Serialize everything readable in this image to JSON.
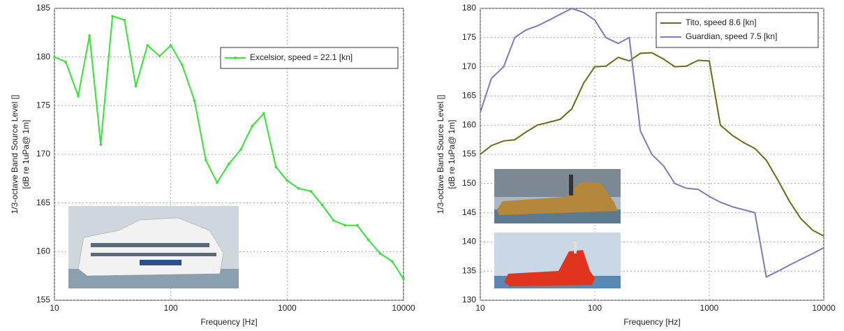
{
  "chart_data": [
    {
      "type": "line",
      "xscale": "log",
      "grid": true,
      "legend": "upper right",
      "markers": true,
      "ylabel": [
        "1/3-octave Band Source Level []",
        "[dB re 1uPa@ 1m]"
      ],
      "xlabel": "Frequency [Hz]",
      "xlim": [
        10,
        10000
      ],
      "ylim": [
        155,
        185
      ],
      "xticks": [
        10,
        100,
        1000,
        10000
      ],
      "yticks": [
        155,
        160,
        165,
        170,
        175,
        180,
        185
      ],
      "x": [
        10,
        12.5,
        16,
        20,
        25,
        31.5,
        40,
        50,
        63,
        80,
        100,
        125,
        160,
        200,
        250,
        315,
        400,
        500,
        630,
        800,
        1000,
        1250,
        1600,
        2000,
        2500,
        3150,
        4000,
        5000,
        6300,
        8000,
        10000
      ],
      "series": [
        {
          "name": "Excelsior, speed = 22.1 [kn]",
          "color": "#33e633",
          "values": [
            180,
            179.5,
            176,
            182.2,
            171,
            184.2,
            183.8,
            177,
            181.2,
            180.1,
            181.2,
            179.2,
            175.5,
            169.4,
            167.1,
            169,
            170.5,
            172.9,
            174.2,
            168.7,
            167.3,
            166.5,
            166.2,
            164.8,
            163.2,
            162.7,
            162.7,
            161.2,
            159.8,
            159,
            157.2
          ]
        }
      ]
    },
    {
      "type": "line",
      "xscale": "log",
      "grid": true,
      "legend": "upper right",
      "markers": false,
      "ylabel": [
        "1/3-octave Band Source Level []",
        "[dB re 1uPa@ 1m]"
      ],
      "xlabel": "Frequency [Hz]",
      "xlim": [
        10,
        10000
      ],
      "ylim": [
        130,
        180
      ],
      "xticks": [
        10,
        100,
        1000,
        10000
      ],
      "yticks": [
        130,
        135,
        140,
        145,
        150,
        155,
        160,
        165,
        170,
        175,
        180
      ],
      "x": [
        10,
        12.5,
        16,
        20,
        25,
        31.5,
        40,
        50,
        63,
        80,
        100,
        125,
        160,
        200,
        250,
        315,
        400,
        500,
        630,
        800,
        1000,
        1250,
        1600,
        2000,
        2500,
        3150,
        4000,
        5000,
        6300,
        8000,
        10000
      ],
      "series": [
        {
          "name": "Tito, speed 8.6 [kn]",
          "color": "#6b6b12",
          "values": [
            155,
            156.5,
            157.3,
            157.5,
            158.8,
            160,
            160.5,
            161,
            162.8,
            167.2,
            170,
            170.1,
            171.6,
            171,
            172.3,
            172.4,
            171.3,
            170,
            170.1,
            171.1,
            171,
            160,
            158.2,
            157,
            156,
            154,
            150.5,
            147,
            144,
            142,
            141
          ]
        },
        {
          "name": "Guardian, speed 7.5 [kn]",
          "color": "#7b7bc0",
          "values": [
            162.2,
            168,
            170,
            175,
            176.3,
            177,
            178,
            179,
            180,
            179.3,
            178,
            175,
            174,
            175,
            159,
            155,
            153,
            150,
            149.2,
            149,
            147.8,
            146.8,
            146,
            145.5,
            145,
            134,
            135,
            136,
            137,
            138,
            139
          ]
        }
      ]
    }
  ]
}
